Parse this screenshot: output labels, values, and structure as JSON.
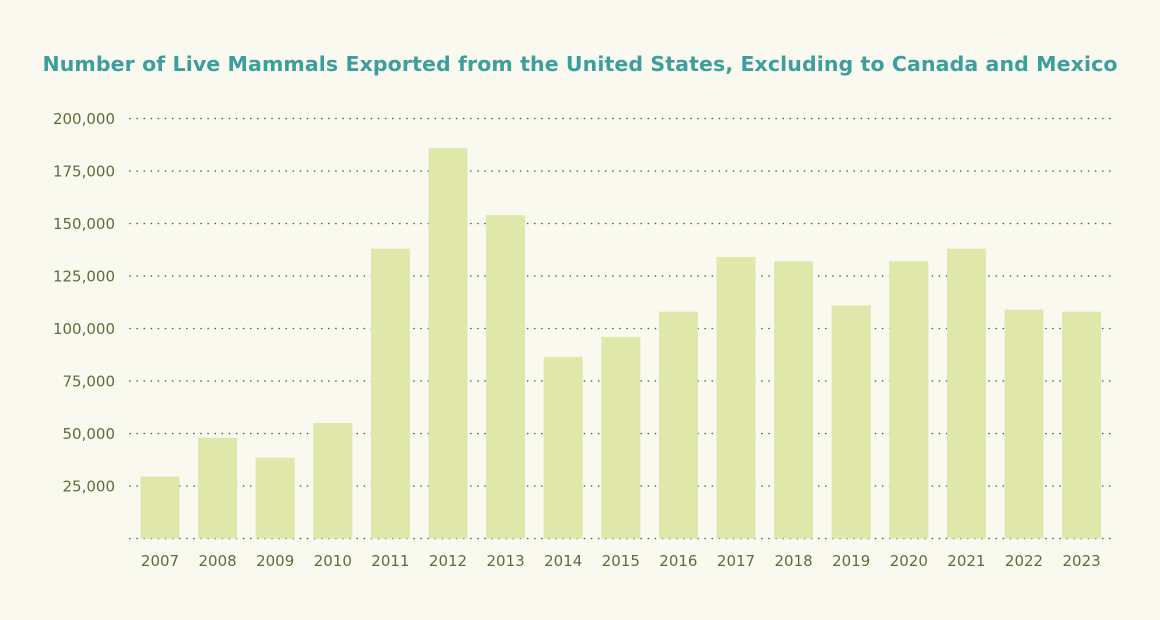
{
  "chart_data": {
    "type": "bar",
    "title": "Number of Live Mammals Exported from the United States, Excluding to Canada and Mexico",
    "xlabel": "",
    "ylabel": "",
    "categories": [
      "2007",
      "2008",
      "2009",
      "2010",
      "2011",
      "2012",
      "2013",
      "2014",
      "2015",
      "2016",
      "2017",
      "2018",
      "2019",
      "2020",
      "2021",
      "2022",
      "2023"
    ],
    "values": [
      29500,
      48000,
      38500,
      55000,
      138000,
      186000,
      154000,
      86500,
      96000,
      108000,
      134000,
      132000,
      111000,
      132000,
      138000,
      109000,
      108000
    ],
    "ylim": [
      0,
      200000
    ],
    "yticks": [
      25000,
      50000,
      75000,
      100000,
      125000,
      150000,
      175000,
      200000
    ],
    "ytick_labels": [
      "25,000",
      "50,000",
      "75,000",
      "100,000",
      "125,000",
      "150,000",
      "175,000",
      "200,000"
    ],
    "grid": true,
    "legend": "none",
    "colors": {
      "background": "#f9f9ef",
      "bar": "#dfe8aa",
      "grid": "#4f5f36",
      "tick_text": "#5b6e3c",
      "title": "#3d9e9e"
    }
  }
}
